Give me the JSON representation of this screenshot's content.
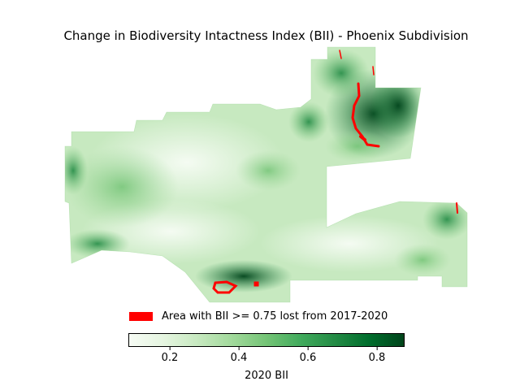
{
  "title": "Change in Biodiversity Intactness Index (BII) - Phoenix Subdivision",
  "legend": {
    "label": "Area with BII >= 0.75 lost from 2017-2020",
    "color": "#ff0000"
  },
  "colorbar": {
    "label": "2020 BII",
    "colormap": "Greens",
    "range": [
      0.08,
      0.88
    ],
    "ticks": [
      {
        "value": 0.2,
        "label": "0.2"
      },
      {
        "value": 0.4,
        "label": "0.4"
      },
      {
        "value": 0.6,
        "label": "0.6"
      },
      {
        "value": 0.8,
        "label": "0.8"
      }
    ],
    "colors": [
      "#f7fcf5",
      "#e5f5e0",
      "#c7e9c0",
      "#a1d99b",
      "#74c476",
      "#41ab5d",
      "#238b45",
      "#006d2c",
      "#00441b"
    ]
  }
}
